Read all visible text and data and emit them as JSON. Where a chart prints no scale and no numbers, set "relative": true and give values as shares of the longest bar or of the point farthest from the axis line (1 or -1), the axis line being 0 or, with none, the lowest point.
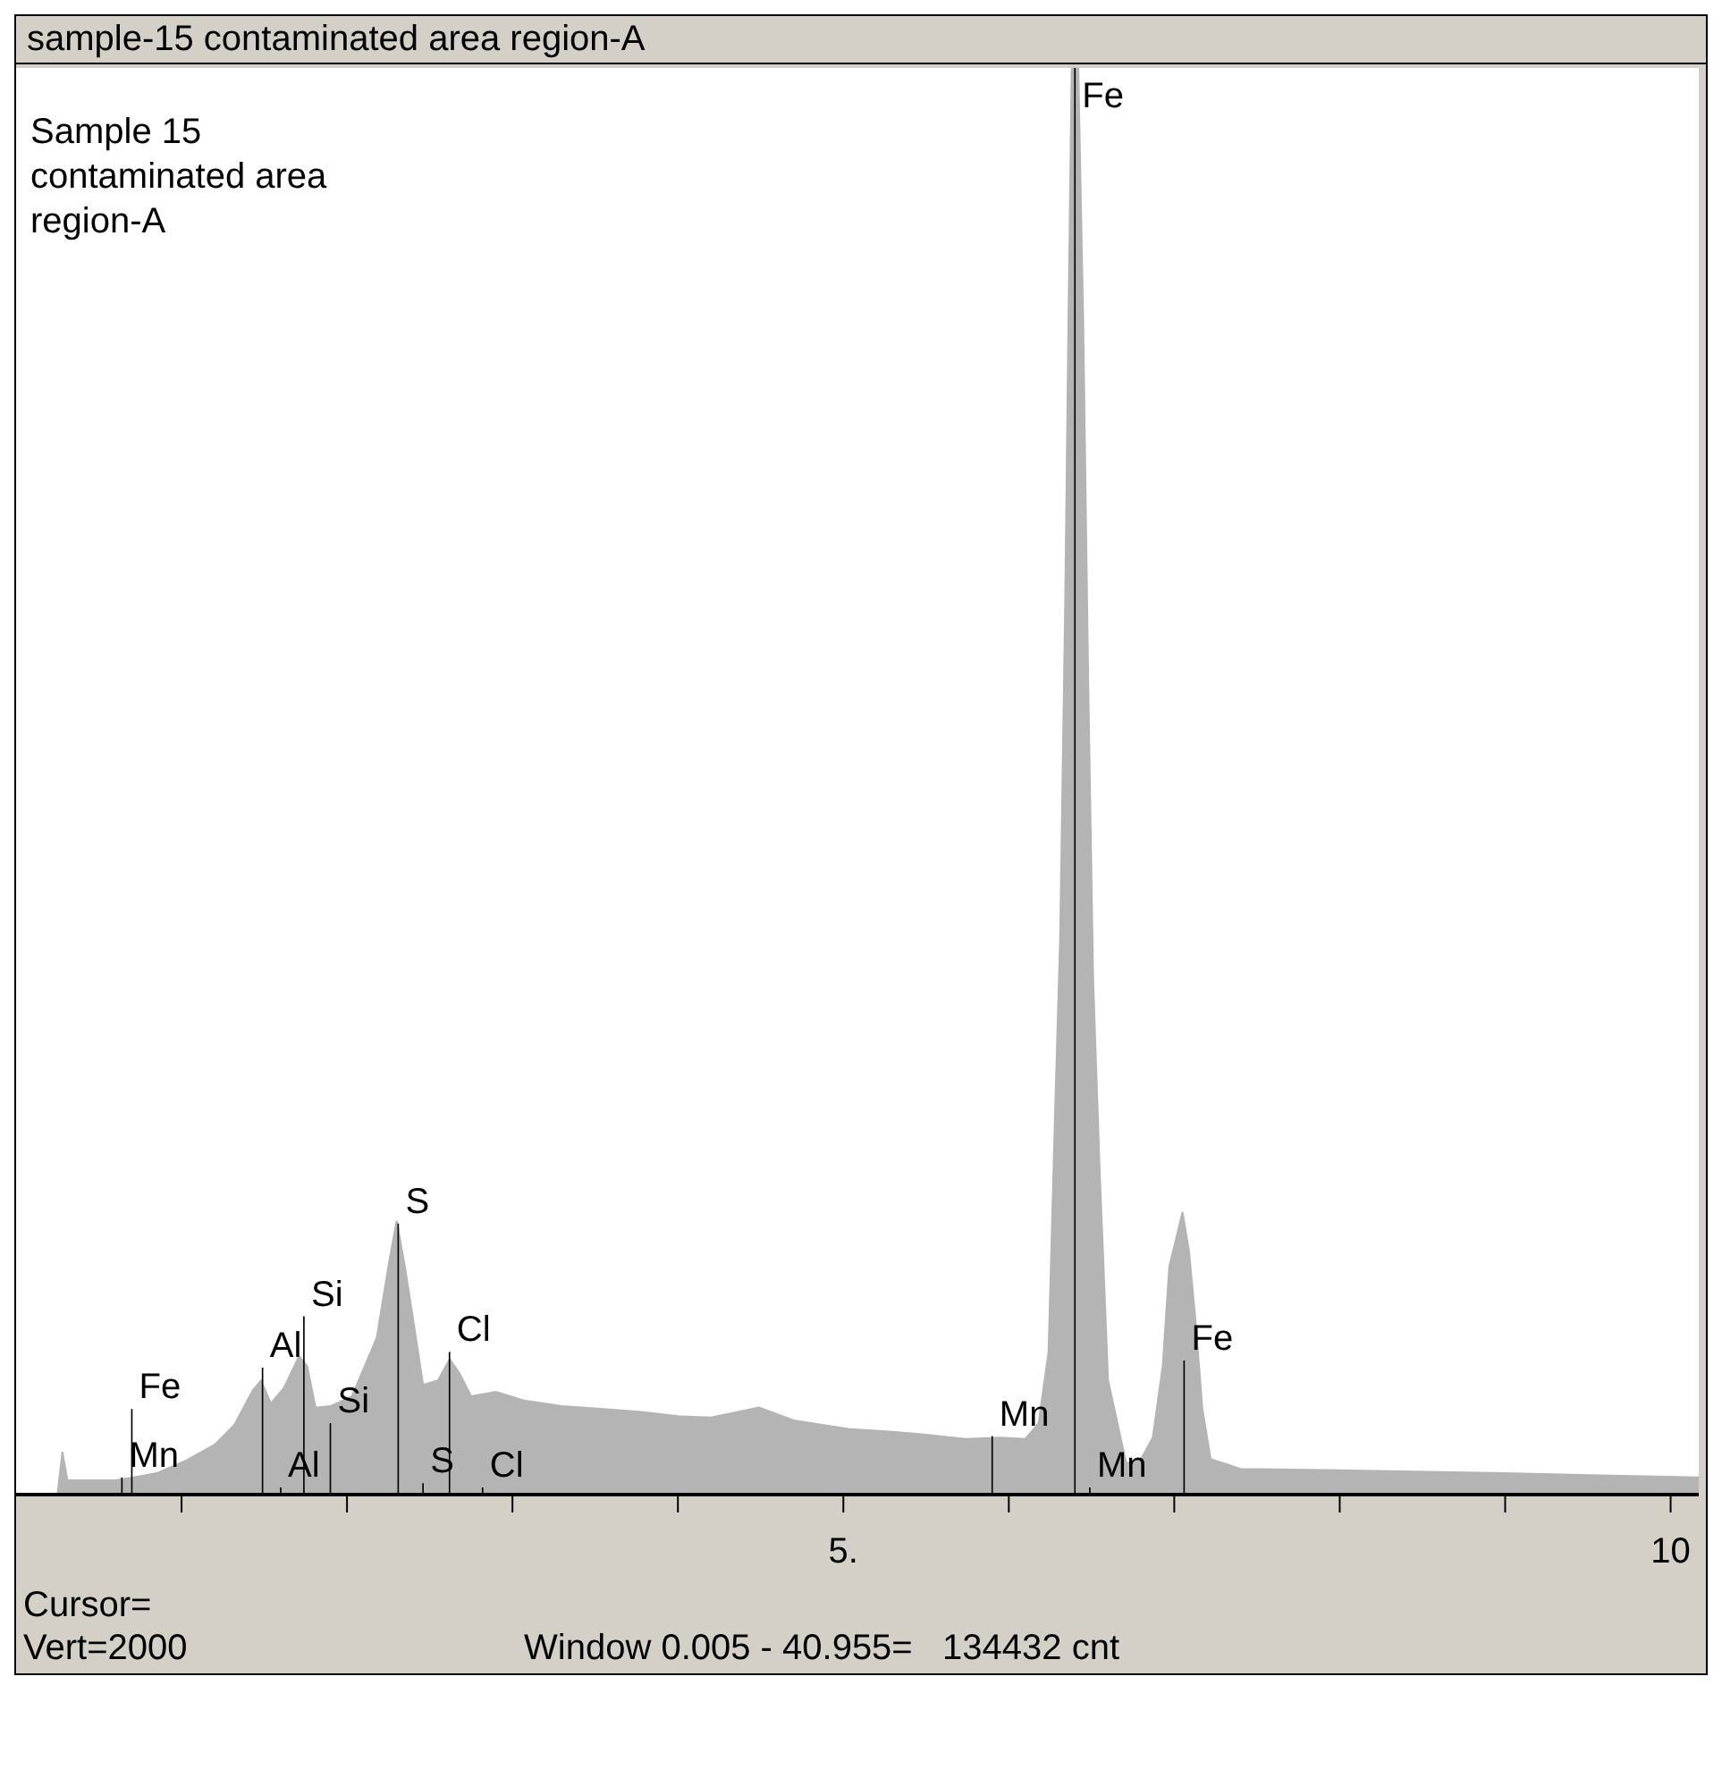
{
  "chart_data": {
    "type": "area",
    "title": "sample-15 contaminated area region-A",
    "subtitle": "Sample 15\ncontaminated area\nregion-A",
    "relative": true,
    "x": [
      0.0,
      0.25,
      0.28,
      0.31,
      0.45,
      0.6,
      0.71,
      0.85,
      1.03,
      1.2,
      1.32,
      1.43,
      1.48,
      1.54,
      1.62,
      1.71,
      1.76,
      1.81,
      1.9,
      2.03,
      2.18,
      2.25,
      2.3,
      2.35,
      2.39,
      2.46,
      2.55,
      2.62,
      2.68,
      2.75,
      2.9,
      3.07,
      3.3,
      3.55,
      3.78,
      4.0,
      4.2,
      4.49,
      4.7,
      5.03,
      5.3,
      5.5,
      5.74,
      5.95,
      6.1,
      6.18,
      6.24,
      6.28,
      6.31,
      6.34,
      6.36,
      6.38,
      6.42,
      6.45,
      6.48,
      6.51,
      6.55,
      6.6,
      6.71,
      6.8,
      6.87,
      6.93,
      6.97,
      7.05,
      7.09,
      7.13,
      7.17,
      7.22,
      7.4,
      8.0,
      9.0,
      10.17
    ],
    "series": [
      {
        "color": "#b4b4b4",
        "values": [
          0,
          0,
          0.03,
          0.01,
          0.01,
          0.01,
          0.012,
          0.015,
          0.024,
          0.035,
          0.049,
          0.073,
          0.08,
          0.064,
          0.075,
          0.097,
          0.09,
          0.061,
          0.062,
          0.069,
          0.11,
          0.16,
          0.192,
          0.16,
          0.13,
          0.077,
          0.08,
          0.095,
          0.085,
          0.069,
          0.072,
          0.066,
          0.062,
          0.06,
          0.058,
          0.055,
          0.054,
          0.061,
          0.052,
          0.046,
          0.044,
          0.042,
          0.039,
          0.04,
          0.039,
          0.05,
          0.1,
          0.27,
          0.39,
          0.62,
          0.82,
          1.0,
          1.0,
          0.82,
          0.57,
          0.36,
          0.225,
          0.08,
          0.022,
          0.025,
          0.04,
          0.09,
          0.16,
          0.198,
          0.17,
          0.12,
          0.06,
          0.025,
          0.018,
          0.017,
          0.015,
          0.012
        ]
      },
      {
        "type": "bar",
        "color": "#000000",
        "x": [
          0.64,
          0.7,
          1.49,
          1.6,
          1.74,
          1.9,
          2.31,
          2.46,
          2.62,
          2.82,
          5.9,
          6.4,
          6.49,
          7.06
        ],
        "values": [
          0.012,
          0.06,
          0.089,
          0.005,
          0.125,
          0.05,
          0.19,
          0.008,
          0.1,
          0.005,
          0.041,
          1.0,
          0.005,
          0.094
        ]
      }
    ],
    "xlim": [
      0,
      10.17
    ],
    "xticks": [
      {
        "value": 1,
        "label": null
      },
      {
        "value": 2,
        "label": null
      },
      {
        "value": 3,
        "label": null
      },
      {
        "value": 4,
        "label": null
      },
      {
        "value": 5,
        "label": "5."
      },
      {
        "value": 6,
        "label": null
      },
      {
        "value": 7,
        "label": null
      },
      {
        "value": 8,
        "label": null
      },
      {
        "value": 9,
        "label": null
      },
      {
        "value": 10,
        "label": "10"
      }
    ],
    "annotations": [
      {
        "text": "Mn",
        "x": 0.64,
        "y": 0.012
      },
      {
        "text": "Fe",
        "x": 0.7,
        "y": 0.06
      },
      {
        "text": "Al",
        "x": 1.49,
        "y": 0.089
      },
      {
        "text": "Al",
        "x": 1.6,
        "y": 0.005
      },
      {
        "text": "Si",
        "x": 1.74,
        "y": 0.125
      },
      {
        "text": "Si",
        "x": 1.9,
        "y": 0.05
      },
      {
        "text": "S",
        "x": 2.31,
        "y": 0.19
      },
      {
        "text": "S",
        "x": 2.46,
        "y": 0.008
      },
      {
        "text": "Cl",
        "x": 2.62,
        "y": 0.1
      },
      {
        "text": "Cl",
        "x": 2.82,
        "y": 0.005
      },
      {
        "text": "Mn",
        "x": 5.9,
        "y": 0.041
      },
      {
        "text": "Fe",
        "x": 6.4,
        "y": 1.0
      },
      {
        "text": "Mn",
        "x": 6.49,
        "y": 0.005
      },
      {
        "text": "Fe",
        "x": 7.06,
        "y": 0.094
      },
      "Cursor=",
      "Vert=2000",
      "Window 0.005 - 40.955=   134432 cnt"
    ]
  }
}
